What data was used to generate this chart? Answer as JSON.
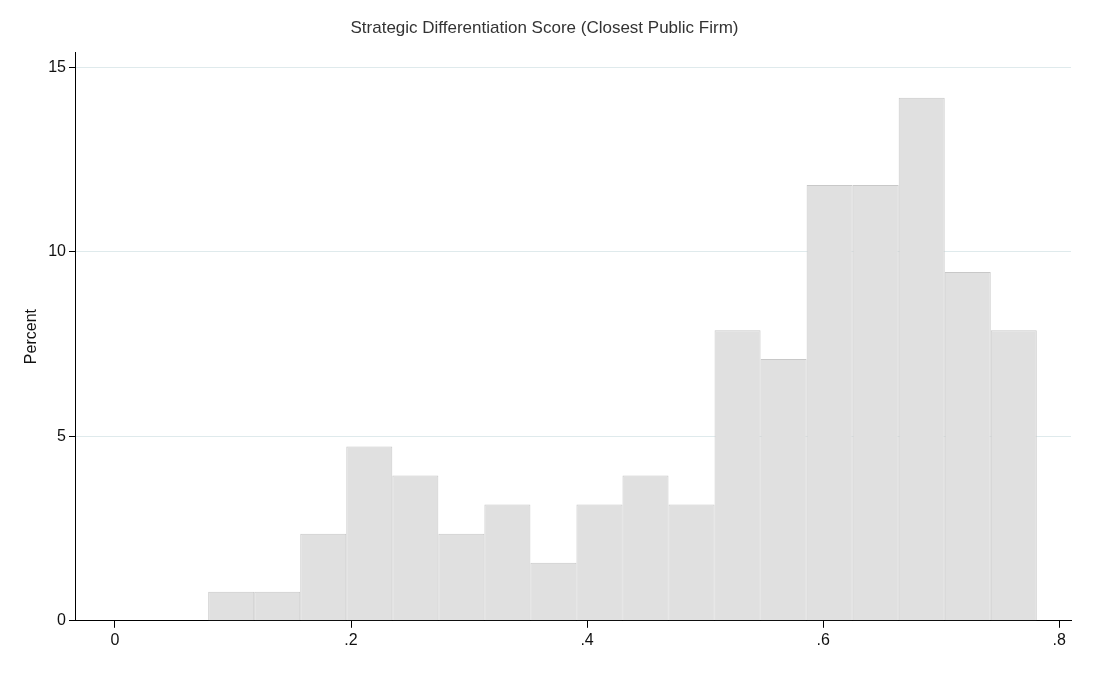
{
  "chart_data": {
    "type": "histogram",
    "title": "Strategic Differentiation Score (Closest Public Firm)",
    "ylabel": "Percent",
    "bins": [
      0.079,
      0.118,
      0.157,
      0.196,
      0.235,
      0.274,
      0.313,
      0.352,
      0.391,
      0.43,
      0.469,
      0.508,
      0.547,
      0.586,
      0.625,
      0.664,
      0.703,
      0.742,
      0.781
    ],
    "values": [
      0.79,
      0.79,
      2.36,
      4.72,
      3.94,
      2.36,
      3.15,
      1.57,
      3.15,
      3.94,
      3.15,
      7.87,
      7.09,
      11.81,
      11.81,
      14.17,
      9.45,
      7.87
    ],
    "color": "#e0e0e0",
    "xlim": [
      -0.033,
      0.81
    ],
    "xticks": [
      0,
      {
        "value": 0.2,
        "label": ".2"
      },
      {
        "value": 0.4,
        "label": ".4"
      },
      {
        "value": 0.6,
        "label": ".6"
      },
      {
        "value": 0.8,
        "label": ".8"
      }
    ],
    "ylim": [
      0,
      15.4
    ],
    "yticks": [
      0,
      5,
      10,
      15
    ],
    "grid": "y",
    "legend": false
  }
}
